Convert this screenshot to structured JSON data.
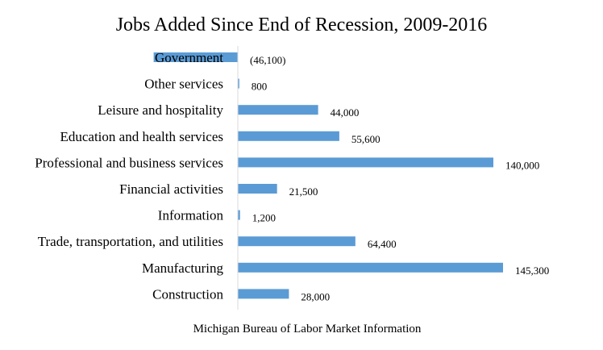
{
  "chart_data": {
    "type": "bar",
    "orientation": "horizontal",
    "title": "Jobs Added Since End of Recession, 2009-2016",
    "source": "Michigan Bureau of Labor Market Information",
    "categories": [
      "Government",
      "Other services",
      "Leisure and hospitality",
      "Education and health services",
      "Professional and business services",
      "Financial activities",
      "Information",
      "Trade, transportation, and utilities",
      "Manufacturing",
      "Construction"
    ],
    "values": [
      -46100,
      800,
      44000,
      55600,
      140000,
      21500,
      1200,
      64400,
      145300,
      28000
    ],
    "data_labels": [
      "(46,100)",
      "800",
      "44,000",
      "55,600",
      "140,000",
      "21,500",
      "1,200",
      "64,400",
      "145,300",
      "28,000"
    ],
    "bar_color": "#5b9bd5",
    "legend": "none",
    "grid": false
  }
}
